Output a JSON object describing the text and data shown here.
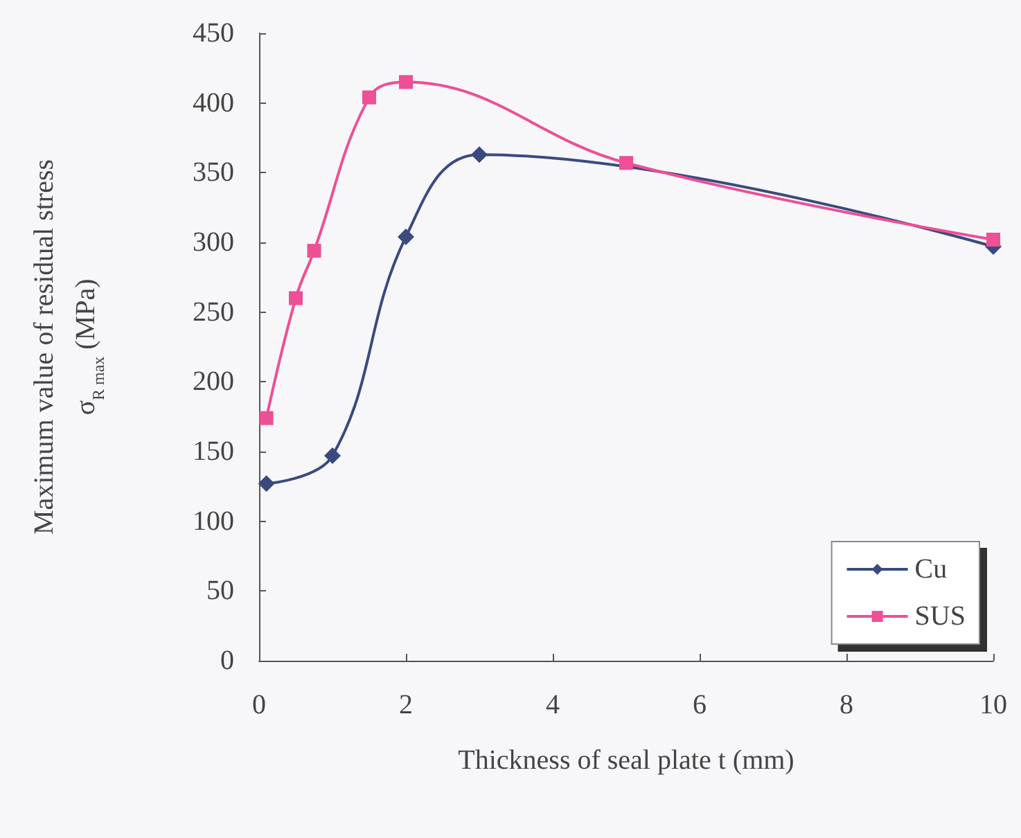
{
  "chart_data": {
    "type": "line",
    "xlabel": "Thickness of seal plate t (mm)",
    "ylabel": "Maximum value of residual stress\nσ$_{R max}$ (MPa)",
    "xlim": [
      0,
      10
    ],
    "xticks": [
      0,
      2,
      4,
      6,
      8,
      10
    ],
    "ylim": [
      0,
      450
    ],
    "yticks": [
      0,
      50,
      100,
      150,
      200,
      250,
      300,
      350,
      400,
      450
    ],
    "grid": false,
    "legend": "bottom right",
    "line_style": "solid",
    "series": [
      {
        "name": "Cu",
        "color": "#3b4a7e",
        "marker": "diamond",
        "x": [
          0.1,
          1,
          2,
          3,
          10
        ],
        "values": [
          127,
          147,
          304,
          363,
          297
        ]
      },
      {
        "name": "SUS",
        "color": "#ee4f95",
        "marker": "square",
        "x": [
          0.1,
          0.5,
          0.75,
          1.5,
          2,
          5,
          10
        ],
        "values": [
          174,
          260,
          294,
          404,
          415,
          357,
          302
        ]
      }
    ]
  }
}
